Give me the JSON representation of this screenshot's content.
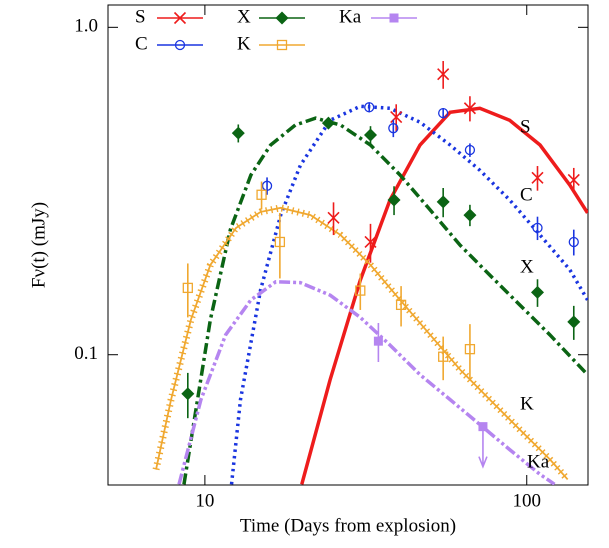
{
  "chart_data": {
    "type": "scatter",
    "x_label": "Time (Days from explosion)",
    "y_label": "Fν(t) (mJy)",
    "log_x": true,
    "log_y": true,
    "xlim": [
      5,
      155
    ],
    "ylim": [
      0.04,
      1.17
    ],
    "xticks": [
      10,
      100
    ],
    "yticks": [
      0.1,
      {
        "value": 1,
        "label": "1.0"
      }
    ],
    "legend": "top-left",
    "series": [
      {
        "name": "S",
        "color": "#ee1c1c",
        "marker": "x",
        "line_style": "solid",
        "x": [
          25.1,
          32.7,
          39.3,
          55.0,
          66.6,
          108,
          140
        ],
        "values": [
          0.262,
          0.221,
          0.532,
          0.719,
          0.566,
          0.347,
          0.342
        ],
        "errors": [
          0.03,
          0.03,
          0.05,
          0.07,
          0.05,
          0.03,
          0.03
        ],
        "model": {
          "x": [
            20.0,
            24.5,
            30.4,
            37.6,
            46.6,
            57.8,
            71.5,
            88.5,
            110,
            136,
            154.5
          ],
          "values": [
            0.0402,
            0.0839,
            0.169,
            0.297,
            0.437,
            0.55,
            0.566,
            0.52,
            0.437,
            0.33,
            0.271
          ]
        }
      },
      {
        "name": "C",
        "color": "#1a35e0",
        "marker": "circle",
        "line_style": "dotted",
        "x": [
          15.6,
          32.4,
          38.5,
          55.0,
          66.6,
          108,
          140
        ],
        "values": [
          0.328,
          0.57,
          0.492,
          0.547,
          0.422,
          0.244,
          0.221
        ],
        "errors": [
          0.02,
          0.02,
          0.03,
          0.02,
          0.02,
          0.02,
          0.02
        ],
        "model": {
          "x": [
            12.1,
            12.9,
            14.9,
            17.2,
            19.8,
            24.5,
            30.4,
            37.6,
            46.6,
            57.8,
            71.5,
            88.5,
            110,
            136,
            154.5
          ],
          "values": [
            0.0402,
            0.0729,
            0.158,
            0.267,
            0.379,
            0.52,
            0.574,
            0.566,
            0.513,
            0.437,
            0.366,
            0.297,
            0.232,
            0.182,
            0.147
          ]
        }
      },
      {
        "name": "X",
        "color": "#0b6414",
        "marker": "diamond",
        "line_style": "dashdot",
        "x": [
          8.85,
          12.7,
          24.2,
          32.7,
          38.7,
          55.0,
          66.6,
          108,
          140
        ],
        "values": [
          0.076,
          0.475,
          0.51,
          0.469,
          0.297,
          0.293,
          0.267,
          0.155,
          0.126
        ],
        "errors": [
          0.012,
          0.03,
          0.02,
          0.03,
          0.03,
          0.03,
          0.02,
          0.015,
          0.015
        ],
        "model": {
          "x": [
            8.61,
            9.38,
            10.4,
            12.0,
            13.9,
            16.0,
            19.1,
            22.1,
            26.4,
            32.7,
            40.4,
            50.1,
            62.1,
            76.8,
            95.1,
            118,
            154.5
          ],
          "values": [
            0.0402,
            0.068,
            0.128,
            0.241,
            0.354,
            0.437,
            0.503,
            0.528,
            0.503,
            0.437,
            0.354,
            0.277,
            0.216,
            0.175,
            0.142,
            0.115,
            0.0869
          ]
        }
      },
      {
        "name": "K",
        "color": "#f0a830",
        "marker": "square",
        "line_style": "ticked",
        "x": [
          8.85,
          15.0,
          17.1,
          30.4,
          40.7,
          55.0,
          66.6
        ],
        "values": [
          0.16,
          0.308,
          0.221,
          0.157,
          0.142,
          0.0986,
          0.104
        ],
        "errors": [
          0.03,
          0.03,
          0.05,
          0.02,
          0.02,
          0.015,
          0.02
        ],
        "model": {
          "x": [
            7.05,
            7.85,
            9.05,
            10.4,
            12.5,
            14.9,
            17.2,
            21.3,
            26.4,
            32.7,
            40.4,
            50.1,
            62.1,
            76.8,
            95.1,
            118,
            134
          ],
          "values": [
            0.0446,
            0.0729,
            0.128,
            0.188,
            0.244,
            0.273,
            0.281,
            0.267,
            0.232,
            0.188,
            0.147,
            0.115,
            0.09,
            0.0729,
            0.0591,
            0.0479,
            0.0416
          ]
        }
      },
      {
        "name": "Ka",
        "color": "#b585f0",
        "marker": "filled-square",
        "line_style": "dashdotdot",
        "x": [
          34.6,
          73.1
        ],
        "values": [
          0.11,
          0.0603
        ],
        "errors": [
          0.015,
          null
        ],
        "upper_limits": [
          false,
          true
        ],
        "model": {
          "x": [
            8.31,
            9.72,
            11.6,
            13.9,
            16.6,
            19.8,
            24.5,
            30.4,
            37.6,
            46.6,
            57.8,
            71.5,
            88.5,
            110,
            122
          ],
          "values": [
            0.0402,
            0.0729,
            0.115,
            0.147,
            0.167,
            0.166,
            0.152,
            0.13,
            0.107,
            0.0869,
            0.0729,
            0.0612,
            0.0513,
            0.0431,
            0.0402
          ]
        }
      }
    ]
  }
}
